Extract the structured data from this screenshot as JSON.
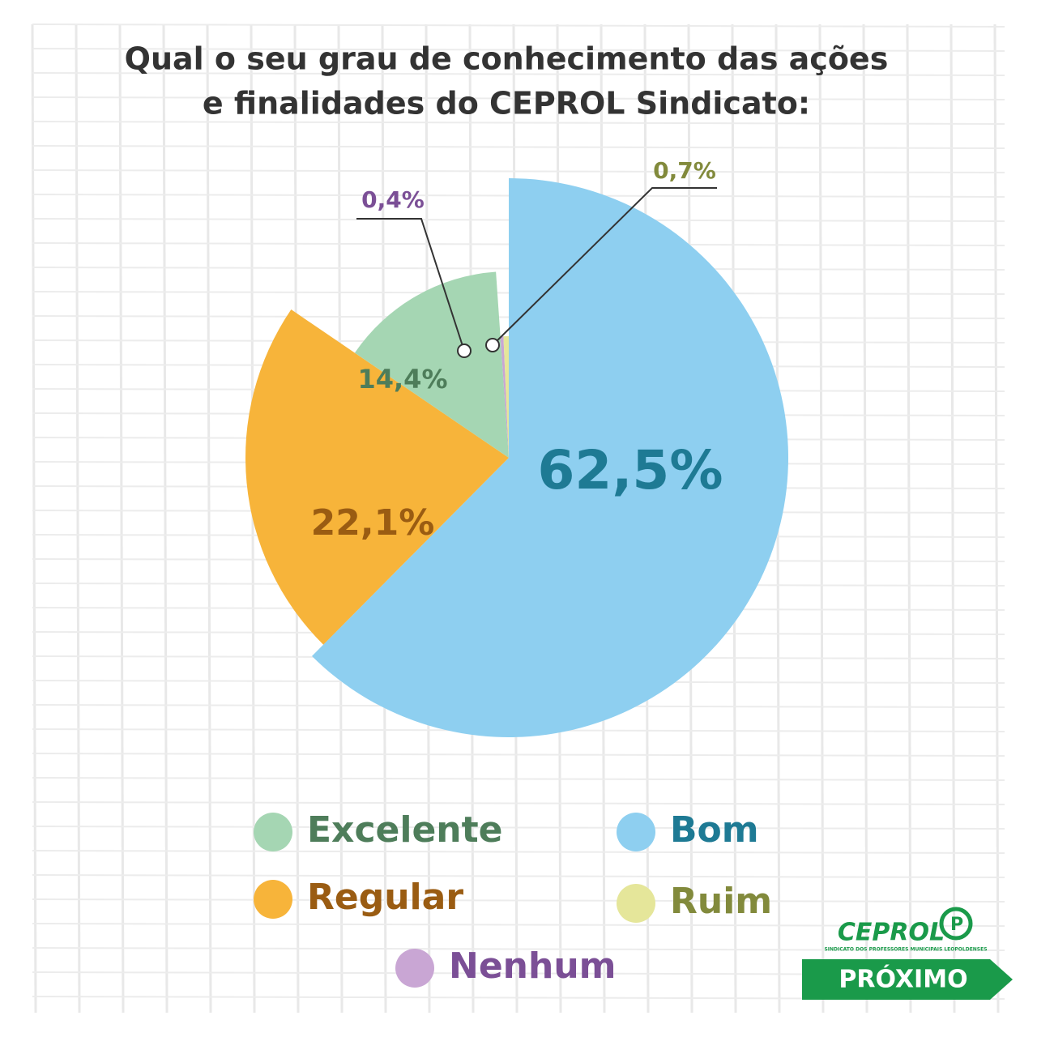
{
  "chart_data": {
    "type": "pie",
    "title": [
      "Qual o seu grau de conhecimento das ações",
      "e finalidades do CEPROL Sindicato:"
    ],
    "categories": [
      "Bom",
      "Regular",
      "Excelente",
      "Nenhum",
      "Ruim"
    ],
    "values": [
      62.5,
      22.1,
      14.4,
      0.4,
      0.7
    ],
    "value_labels": [
      "62,5%",
      "22,1%",
      "14,4%",
      "0,4%",
      "0,7%"
    ],
    "colors": [
      "#8ecff0",
      "#f7b43a",
      "#a5d6b3",
      "#c9a6d4",
      "#e5e69a"
    ],
    "label_colors": [
      "#1e7a94",
      "#9a5c12",
      "#4e7d5a",
      "#7b4f96",
      "#828a3c"
    ]
  },
  "branding": {
    "logo": "CEPROL",
    "logo_mark": "P",
    "tagline": "SINDICATO DOS PROFESSORES MUNICIPAIS LEOPOLDENSES"
  },
  "button": {
    "label": "PRÓXIMO"
  }
}
